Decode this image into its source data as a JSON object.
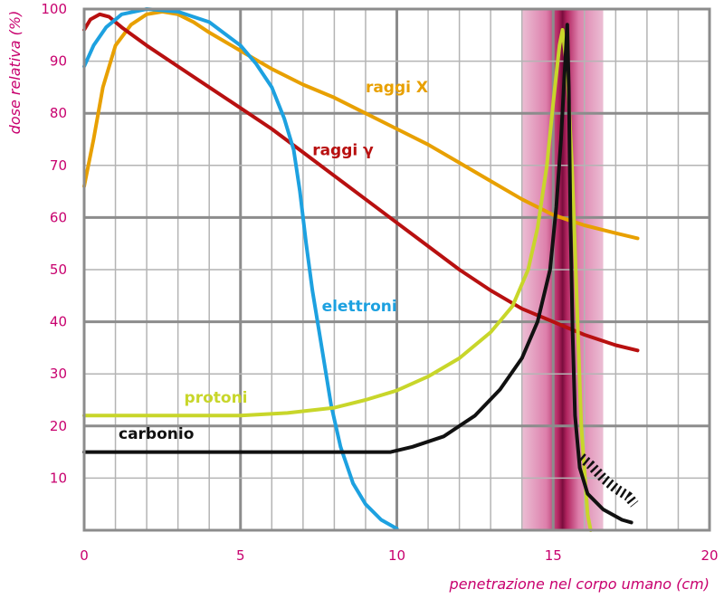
{
  "chart_data": {
    "type": "line",
    "title": "",
    "xlabel": "penetrazione nel corpo umano (cm)",
    "ylabel": "dose relativa (%)",
    "xlim": [
      0,
      20
    ],
    "ylim": [
      0,
      100
    ],
    "x_ticks": [
      "0",
      "5",
      "10",
      "15",
      "20"
    ],
    "y_ticks": [
      "10",
      "20",
      "30",
      "40",
      "50",
      "60",
      "70",
      "80",
      "90",
      "100"
    ],
    "grid": true,
    "highlight_band": {
      "center": 15.3,
      "halfwidth": 1.3
    },
    "series": [
      {
        "name": "raggi X",
        "color": "#e8a000",
        "points": [
          [
            0.0,
            66
          ],
          [
            0.3,
            75
          ],
          [
            0.6,
            85
          ],
          [
            1.0,
            93
          ],
          [
            1.5,
            97
          ],
          [
            2.0,
            99
          ],
          [
            2.5,
            99.5
          ],
          [
            3.0,
            99
          ],
          [
            3.5,
            97.5
          ],
          [
            4.0,
            95.5
          ],
          [
            5.0,
            92
          ],
          [
            6.0,
            88.5
          ],
          [
            7.0,
            85.5
          ],
          [
            8.0,
            83
          ],
          [
            9.0,
            80
          ],
          [
            10.0,
            77
          ],
          [
            11.0,
            74
          ],
          [
            12.0,
            70.5
          ],
          [
            13.0,
            67
          ],
          [
            14.0,
            63.5
          ],
          [
            15.0,
            60.5
          ],
          [
            16.0,
            58.5
          ],
          [
            17.0,
            57
          ],
          [
            17.7,
            56
          ]
        ]
      },
      {
        "name": "raggi γ",
        "color": "#b81010",
        "points": [
          [
            0.0,
            96
          ],
          [
            0.2,
            98
          ],
          [
            0.5,
            99
          ],
          [
            0.8,
            98.5
          ],
          [
            1.2,
            96.5
          ],
          [
            2.0,
            93
          ],
          [
            3.0,
            89
          ],
          [
            4.0,
            85
          ],
          [
            5.0,
            81
          ],
          [
            6.0,
            77
          ],
          [
            7.0,
            72.5
          ],
          [
            8.0,
            68
          ],
          [
            9.0,
            63.5
          ],
          [
            10.0,
            59
          ],
          [
            11.0,
            54.5
          ],
          [
            12.0,
            50
          ],
          [
            13.0,
            46
          ],
          [
            14.0,
            42.5
          ],
          [
            15.0,
            40
          ],
          [
            16.0,
            37.5
          ],
          [
            17.0,
            35.5
          ],
          [
            17.7,
            34.5
          ]
        ]
      },
      {
        "name": "elettroni",
        "color": "#1da1e0",
        "points": [
          [
            0.0,
            89
          ],
          [
            0.3,
            93
          ],
          [
            0.7,
            96.5
          ],
          [
            1.2,
            99
          ],
          [
            2.0,
            100
          ],
          [
            3.0,
            99.5
          ],
          [
            4.0,
            97.5
          ],
          [
            5.0,
            93
          ],
          [
            5.5,
            89.5
          ],
          [
            6.0,
            85
          ],
          [
            6.4,
            79
          ],
          [
            6.7,
            73
          ],
          [
            6.9,
            65
          ],
          [
            7.1,
            55
          ],
          [
            7.3,
            46
          ],
          [
            7.6,
            35
          ],
          [
            7.9,
            24
          ],
          [
            8.2,
            16
          ],
          [
            8.6,
            9
          ],
          [
            9.0,
            5
          ],
          [
            9.5,
            2
          ],
          [
            10.0,
            0.3
          ]
        ]
      },
      {
        "name": "protoni",
        "color": "#c8d62a",
        "points": [
          [
            0.0,
            22
          ],
          [
            2.0,
            22
          ],
          [
            5.0,
            22
          ],
          [
            6.5,
            22.5
          ],
          [
            8.0,
            23.5
          ],
          [
            9.0,
            25
          ],
          [
            10.0,
            26.8
          ],
          [
            11.0,
            29.5
          ],
          [
            12.0,
            33
          ],
          [
            13.0,
            38
          ],
          [
            13.7,
            43
          ],
          [
            14.2,
            50
          ],
          [
            14.5,
            58
          ],
          [
            14.8,
            70
          ],
          [
            15.0,
            82
          ],
          [
            15.2,
            93
          ],
          [
            15.3,
            96
          ],
          [
            15.45,
            88
          ],
          [
            15.6,
            70
          ],
          [
            15.75,
            45
          ],
          [
            15.9,
            20
          ],
          [
            16.1,
            3
          ],
          [
            16.2,
            0
          ]
        ]
      },
      {
        "name": "carbonio",
        "color": "#111111",
        "points": [
          [
            0.0,
            15
          ],
          [
            3.0,
            15
          ],
          [
            6.0,
            15
          ],
          [
            9.0,
            15
          ],
          [
            9.8,
            15
          ],
          [
            10.5,
            16
          ],
          [
            11.5,
            18
          ],
          [
            12.5,
            22
          ],
          [
            13.3,
            27
          ],
          [
            14.0,
            33
          ],
          [
            14.5,
            40
          ],
          [
            14.9,
            50
          ],
          [
            15.1,
            62
          ],
          [
            15.25,
            75
          ],
          [
            15.35,
            86
          ],
          [
            15.45,
            97
          ],
          [
            15.5,
            85
          ],
          [
            15.55,
            60
          ],
          [
            15.62,
            38
          ],
          [
            15.7,
            22
          ],
          [
            15.85,
            12
          ],
          [
            16.1,
            7
          ],
          [
            16.6,
            4
          ],
          [
            17.2,
            2
          ],
          [
            17.5,
            1.5
          ]
        ]
      },
      {
        "name": "",
        "color": "#111111",
        "hatched": true,
        "points": [
          [
            15.9,
            14
          ],
          [
            16.2,
            12.5
          ],
          [
            16.6,
            10
          ],
          [
            17.0,
            8
          ],
          [
            17.4,
            6.5
          ],
          [
            17.6,
            5
          ]
        ]
      }
    ],
    "series_labels": [
      {
        "text": "raggi X",
        "x": 9.0,
        "y": 84,
        "color": "#e8a000"
      },
      {
        "text": "raggi γ",
        "x": 7.3,
        "y": 72,
        "color": "#b81010"
      },
      {
        "text": "elettroni",
        "x": 7.6,
        "y": 42,
        "color": "#1da1e0"
      },
      {
        "text": "protoni",
        "x": 3.2,
        "y": 24.5,
        "color": "#c8d62a"
      },
      {
        "text": "carbonio",
        "x": 1.1,
        "y": 17.5,
        "color": "#111111"
      }
    ]
  }
}
